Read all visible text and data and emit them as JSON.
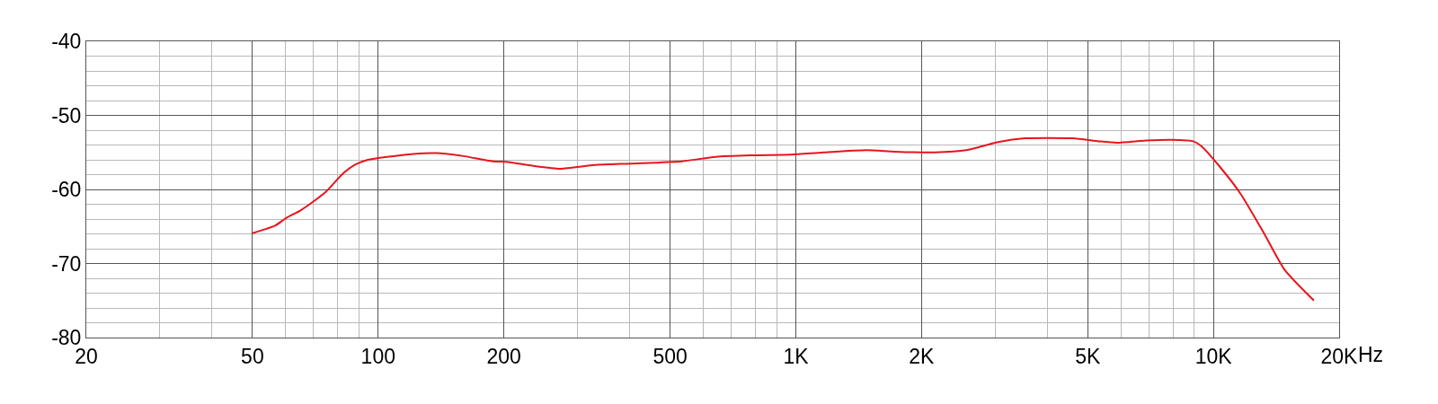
{
  "chart_data": {
    "type": "line",
    "log": "x",
    "grid": true,
    "marker": "none",
    "line_style": "solid",
    "xlim": [
      20,
      20000
    ],
    "ylim": [
      -80,
      -40
    ],
    "xticks": [
      20,
      50,
      100,
      200,
      500,
      {
        "value": 1000,
        "label": "1K"
      },
      {
        "value": 2000,
        "label": "2K"
      },
      {
        "value": 5000,
        "label": "5K"
      },
      {
        "value": 10000,
        "label": "10K"
      },
      {
        "value": 20000,
        "label": "20K"
      }
    ],
    "xlabel": "Hz",
    "yticks": [
      -40,
      -50,
      -60,
      -70,
      -80
    ],
    "x": [
      50,
      56.6,
      60.1,
      65.3,
      69.7,
      75,
      82.2,
      88.5,
      94.5,
      105,
      121.7,
      138,
      160,
      188,
      204.6,
      234,
      273,
      330,
      403,
      534,
      643,
      791,
      973,
      1165,
      1477,
      1729,
      2150,
      2560,
      3050,
      3540,
      4600,
      5310,
      5870,
      6900,
      7940,
      8950,
      9330,
      10380,
      11620,
      13240,
      14830,
      17400
    ],
    "series": [
      {
        "color": "#e8141c",
        "values": [
          -65.9,
          -64.9,
          -63.9,
          -62.8,
          -61.7,
          -60.3,
          -57.9,
          -56.6,
          -56.0,
          -55.6,
          -55.2,
          -55.1,
          -55.5,
          -56.2,
          -56.3,
          -56.8,
          -57.2,
          -56.7,
          -56.5,
          -56.2,
          -55.6,
          -55.4,
          -55.3,
          -55.0,
          -54.7,
          -54.9,
          -55.0,
          -54.7,
          -53.6,
          -53.1,
          -53.1,
          -53.5,
          -53.7,
          -53.4,
          -53.3,
          -53.5,
          -54.1,
          -57.0,
          -60.6,
          -66.0,
          -70.9,
          -75.0
        ]
      }
    ]
  }
}
